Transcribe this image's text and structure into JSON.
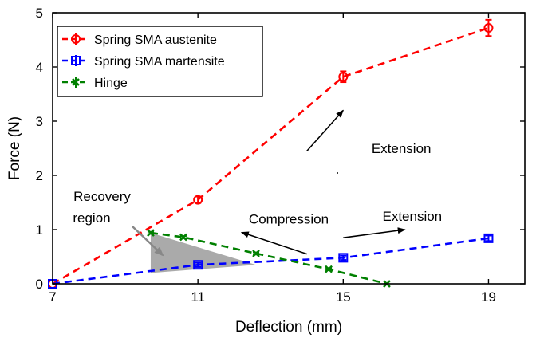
{
  "chart_data": {
    "type": "line",
    "xlabel": "Deflection (mm)",
    "ylabel": "Force (N)",
    "xlim": [
      7,
      20
    ],
    "ylim": [
      0,
      5
    ],
    "xticks": [
      7,
      11,
      15,
      19
    ],
    "yticks": [
      0,
      1,
      2,
      3,
      4,
      5
    ],
    "legend_position": "top-left",
    "series": [
      {
        "name": "Spring SMA austenite",
        "color": "#ff0000",
        "marker": "circle",
        "x": [
          7,
          11,
          15,
          19
        ],
        "y": [
          0.0,
          1.55,
          3.82,
          4.72
        ],
        "error": [
          0.0,
          0.06,
          0.1,
          0.15
        ]
      },
      {
        "name": "Spring SMA martensite",
        "color": "#0000ff",
        "marker": "square",
        "x": [
          7,
          11,
          15,
          19
        ],
        "y": [
          0.0,
          0.35,
          0.48,
          0.84
        ],
        "error": [
          0.0,
          0.04,
          0.04,
          0.05
        ]
      },
      {
        "name": "Hinge",
        "color": "#008000",
        "marker": "x",
        "x": [
          9.7,
          10.6,
          12.6,
          14.6,
          16.2
        ],
        "y": [
          0.94,
          0.86,
          0.56,
          0.27,
          0.0
        ],
        "error": [
          0.02,
          0.02,
          0.02,
          0.02,
          0.0
        ]
      }
    ],
    "region": {
      "label_line1": "Recovery",
      "label_line2": "region",
      "color": "#aaaaaa",
      "polygon": [
        [
          9.7,
          0.94
        ],
        [
          12.6,
          0.35
        ],
        [
          9.7,
          0.2
        ]
      ]
    },
    "annotations": [
      {
        "text": "Extension",
        "x": 16.6,
        "y": 2.5,
        "arrow_from": [
          14.0,
          2.45
        ],
        "arrow_to": [
          15.0,
          3.2
        ]
      },
      {
        "text": "Compression",
        "x": 13.5,
        "y": 1.2,
        "arrow_from": [
          14.0,
          0.55
        ],
        "arrow_to": [
          12.2,
          0.95
        ]
      },
      {
        "text": "Extension",
        "x": 16.9,
        "y": 1.25,
        "arrow_from": [
          15.0,
          0.85
        ],
        "arrow_to": [
          16.7,
          1.0
        ]
      }
    ]
  }
}
